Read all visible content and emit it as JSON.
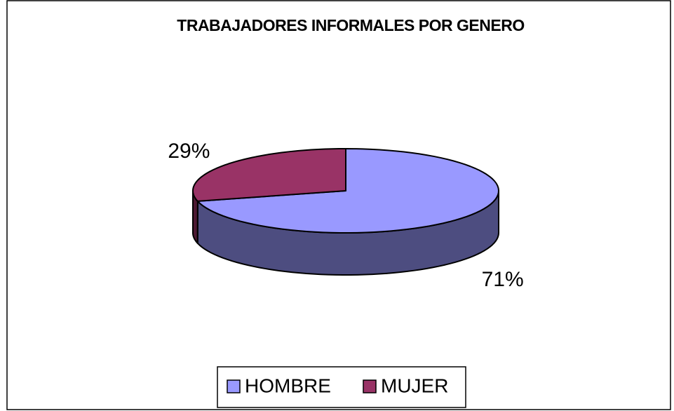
{
  "chart_data": {
    "type": "pie",
    "title": "TRABAJADORES INFORMALES POR GENERO",
    "categories": [
      "HOMBRE",
      "MUJER"
    ],
    "values": [
      71,
      29
    ],
    "value_labels": [
      "71%",
      "29%"
    ],
    "colors": [
      "#9999ff",
      "#993366"
    ],
    "legend": "bottom"
  }
}
